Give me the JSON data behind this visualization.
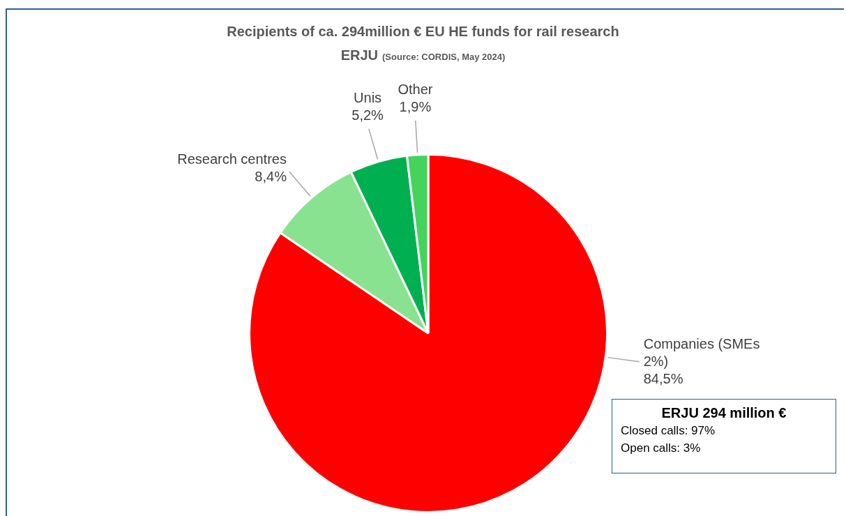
{
  "chart_data": {
    "type": "pie",
    "title": "Recipients of ca. 294million € EU HE funds for rail research",
    "subtitle": "ERJU",
    "categories": [
      "Companies (SMEs 2%)",
      "Research centres",
      "Unis",
      "Other"
    ],
    "values": [
      84.5,
      8.4,
      5.2,
      1.9
    ],
    "value_labels": [
      "84,5%",
      "8,4%",
      "5,2%",
      "1,9%"
    ],
    "colors": [
      "#ff0000",
      "#88e290",
      "#00b050",
      "#44d45e"
    ],
    "annotations": [
      "(Source: CORDIS, May 2024)",
      "ERJU 294 million €",
      "Closed calls:  97%",
      "Open calls:  3%"
    ],
    "legend": false
  }
}
